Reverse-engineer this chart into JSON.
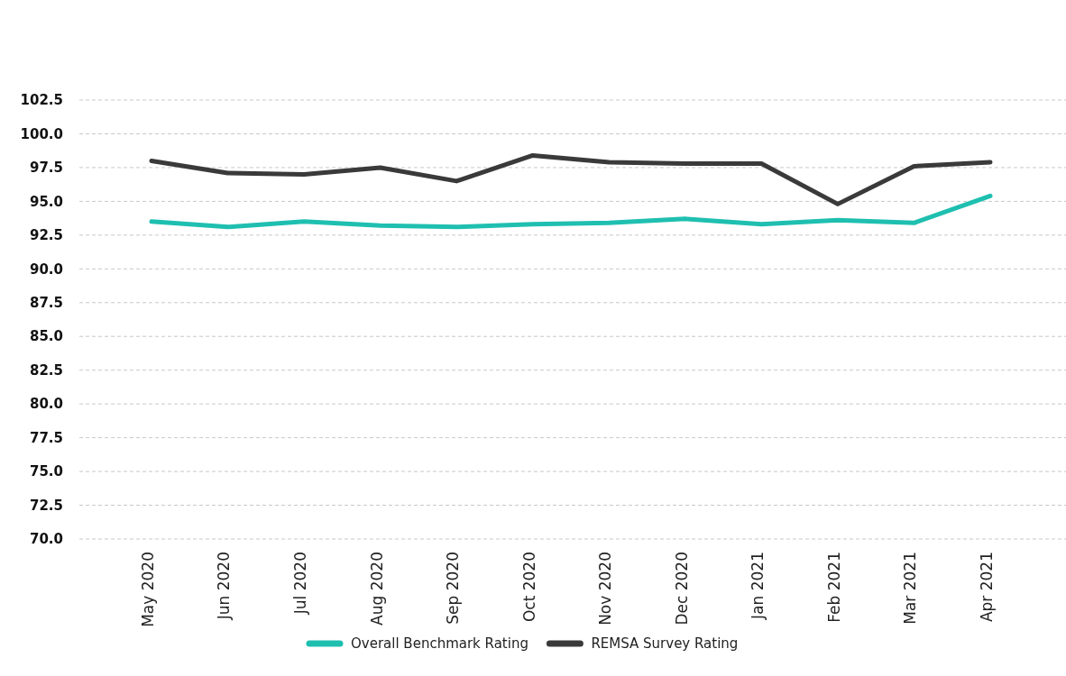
{
  "chart_data": {
    "type": "line",
    "categories": [
      "May 2020",
      "Jun 2020",
      "Jul 2020",
      "Aug 2020",
      "Sep 2020",
      "Oct 2020",
      "Nov 2020",
      "Dec 2020",
      "Jan 2021",
      "Feb 2021",
      "Mar 2021",
      "Apr 2021"
    ],
    "series": [
      {
        "name": "Overall Benchmark Rating",
        "color": "#1fbfb0",
        "values": [
          93.5,
          93.1,
          93.5,
          93.2,
          93.1,
          93.3,
          93.4,
          93.7,
          93.3,
          93.6,
          93.4,
          95.4
        ]
      },
      {
        "name": "REMSA Survey Rating",
        "color": "#3a3a3a",
        "values": [
          98.0,
          97.1,
          97.0,
          97.5,
          96.5,
          98.4,
          97.9,
          97.8,
          97.8,
          94.8,
          97.6,
          97.9
        ]
      }
    ],
    "ylim": [
      70,
      102.5
    ],
    "yticks": [
      {
        "value": 70,
        "label": "70.0"
      },
      {
        "value": 72.5,
        "label": "72.5"
      },
      {
        "value": 75,
        "label": "75.0"
      },
      {
        "value": 77.5,
        "label": "77.5"
      },
      {
        "value": 80,
        "label": "80.0"
      },
      {
        "value": 82.5,
        "label": "82.5"
      },
      {
        "value": 85,
        "label": "85.0"
      },
      {
        "value": 87.5,
        "label": "87.5"
      },
      {
        "value": 90,
        "label": "90.0"
      },
      {
        "value": 92.5,
        "label": "92.5"
      },
      {
        "value": 95,
        "label": "95.0"
      },
      {
        "value": 97.5,
        "label": "97.5"
      },
      {
        "value": 100,
        "label": "100.0"
      },
      {
        "value": 102.5,
        "label": "102.5"
      }
    ],
    "grid": "y",
    "legend": "bottom",
    "marker": "none",
    "line_style": "solid"
  }
}
